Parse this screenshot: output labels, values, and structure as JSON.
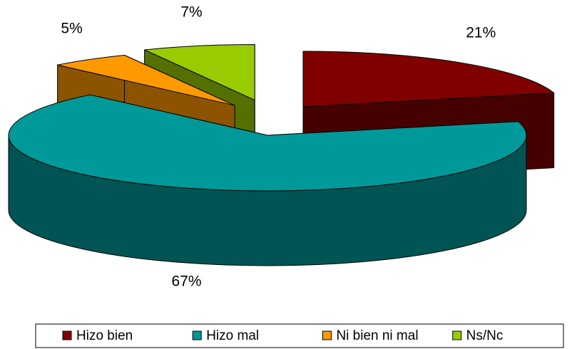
{
  "chart_data": {
    "type": "pie3d",
    "categories": [
      "Hizo bien",
      "Hizo mal",
      "Ni bien ni mal",
      "Ns/Nc"
    ],
    "values": [
      21,
      67,
      5,
      7
    ],
    "value_labels": [
      "21%",
      "67%",
      "5%",
      "7%"
    ],
    "colors": [
      "#800000",
      "#009999",
      "#ff9900",
      "#99cc00"
    ],
    "exploded": [
      true,
      false,
      true,
      true
    ],
    "legend": "bottom"
  }
}
